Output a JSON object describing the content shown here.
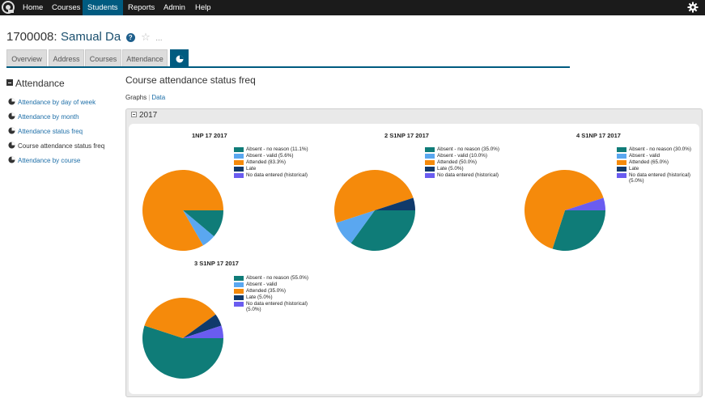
{
  "topnav": {
    "items": [
      "Home",
      "Courses",
      "Students",
      "Reports",
      "Admin",
      "Help"
    ],
    "active": "Students"
  },
  "student": {
    "id": "1700008:",
    "name": "Samual Da"
  },
  "title_extras": {
    "help": "?",
    "more": "..."
  },
  "tabs": [
    "Overview",
    "Address",
    "Courses",
    "Attendance"
  ],
  "sidebar": {
    "heading": "Attendance",
    "items": [
      {
        "label": "Attendance by day of week",
        "link": true
      },
      {
        "label": "Attendance by month",
        "link": true
      },
      {
        "label": "Attendance status freq",
        "link": true
      },
      {
        "label": "Course attendance status freq",
        "link": false
      },
      {
        "label": "Attendance by course",
        "link": true
      }
    ]
  },
  "main": {
    "title": "Course attendance status freq",
    "subnav": {
      "graphs": "Graphs",
      "sep": "|",
      "data": "Data"
    },
    "panel_title": "2017"
  },
  "colors": {
    "absent_no_reason": "#0f7c78",
    "absent_valid": "#5aa7f0",
    "attended": "#f58a0b",
    "late": "#103a6b",
    "no_data": "#6a5cf0",
    "nav_active": "#005b80"
  },
  "chart_data": [
    {
      "type": "pie",
      "title": "1NP 17 2017",
      "categories": [
        "Absent - no reason",
        "Absent - valid",
        "Attended",
        "Late",
        "No data entered (historical)"
      ],
      "legend_labels": [
        "Absent - no reason (11.1%)",
        "Absent - valid (5.6%)",
        "Attended (83.3%)",
        "Late",
        "No data entered (historical)"
      ],
      "values": [
        11.1,
        5.6,
        83.3,
        0,
        0
      ]
    },
    {
      "type": "pie",
      "title": "2 S1NP 17 2017",
      "categories": [
        "Absent - no reason",
        "Absent - valid",
        "Attended",
        "Late",
        "No data entered (historical)"
      ],
      "legend_labels": [
        "Absent - no reason (35.0%)",
        "Absent - valid (10.0%)",
        "Attended (50.0%)",
        "Late (5.0%)",
        "No data entered (historical)"
      ],
      "values": [
        35.0,
        10.0,
        50.0,
        5.0,
        0
      ]
    },
    {
      "type": "pie",
      "title": "4 S1NP 17 2017",
      "categories": [
        "Absent - no reason",
        "Absent - valid",
        "Attended",
        "Late",
        "No data entered (historical)"
      ],
      "legend_labels": [
        "Absent - no reason (30.0%)",
        "Absent - valid",
        "Attended (65.0%)",
        "Late",
        "No data entered (historical) (5.0%)"
      ],
      "values": [
        30.0,
        0,
        65.0,
        0,
        5.0
      ]
    },
    {
      "type": "pie",
      "title": "3 S1NP 17 2017",
      "categories": [
        "Absent - no reason",
        "Absent - valid",
        "Attended",
        "Late",
        "No data entered (historical)"
      ],
      "legend_labels": [
        "Absent - no reason (55.0%)",
        "Absent - valid",
        "Attended (35.0%)",
        "Late (5.0%)",
        "No data entered (historical) (5.0%)"
      ],
      "values": [
        55.0,
        0,
        35.0,
        5.0,
        5.0
      ]
    }
  ]
}
